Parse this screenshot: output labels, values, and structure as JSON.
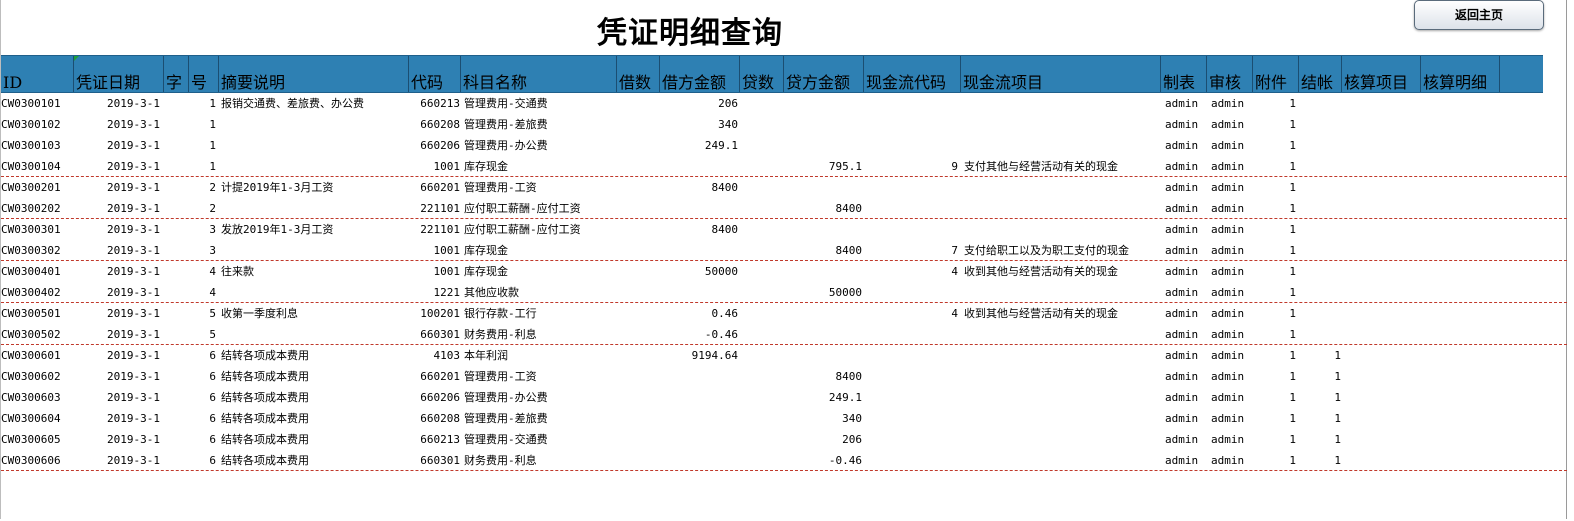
{
  "title": "凭证明细查询",
  "back_button": "返回主页",
  "headers": [
    "ID",
    "凭证日期",
    "字",
    "号",
    "摘要说明",
    "代码",
    "科目名称",
    "借数",
    "借方金额",
    "贷数",
    "贷方金额",
    "现金流代码",
    "现金流项目",
    "制表",
    "审核",
    "附件",
    "结帐",
    "核算项目",
    "核算明细"
  ],
  "rows": [
    {
      "id": "CW0300101",
      "date": "2019-3-1",
      "no": "1",
      "summary": "报销交通费、差旅费、办公费",
      "code": "660213",
      "subject": "管理费用-交通费",
      "debit": "206",
      "credit": "",
      "cf_code": "",
      "cf_item": "",
      "maker": "admin",
      "auditor": "admin",
      "attach": "1",
      "closed": ""
    },
    {
      "id": "CW0300102",
      "date": "2019-3-1",
      "no": "1",
      "summary": "",
      "code": "660208",
      "subject": "管理费用-差旅费",
      "debit": "340",
      "credit": "",
      "cf_code": "",
      "cf_item": "",
      "maker": "admin",
      "auditor": "admin",
      "attach": "1",
      "closed": ""
    },
    {
      "id": "CW0300103",
      "date": "2019-3-1",
      "no": "1",
      "summary": "",
      "code": "660206",
      "subject": "管理费用-办公费",
      "debit": "249.1",
      "credit": "",
      "cf_code": "",
      "cf_item": "",
      "maker": "admin",
      "auditor": "admin",
      "attach": "1",
      "closed": ""
    },
    {
      "id": "CW0300104",
      "date": "2019-3-1",
      "no": "1",
      "summary": "",
      "code": "1001",
      "subject": "库存现金",
      "debit": "",
      "credit": "795.1",
      "cf_code": "9",
      "cf_item": "支付其他与经营活动有关的现金",
      "maker": "admin",
      "auditor": "admin",
      "attach": "1",
      "closed": ""
    },
    {
      "id": "CW0300201",
      "date": "2019-3-1",
      "no": "2",
      "summary": "计提2019年1-3月工资",
      "code": "660201",
      "subject": "管理费用-工资",
      "debit": "8400",
      "credit": "",
      "cf_code": "",
      "cf_item": "",
      "maker": "admin",
      "auditor": "admin",
      "attach": "1",
      "closed": ""
    },
    {
      "id": "CW0300202",
      "date": "2019-3-1",
      "no": "2",
      "summary": "",
      "code": "221101",
      "subject": "应付职工薪酬-应付工资",
      "debit": "",
      "credit": "8400",
      "cf_code": "",
      "cf_item": "",
      "maker": "admin",
      "auditor": "admin",
      "attach": "1",
      "closed": ""
    },
    {
      "id": "CW0300301",
      "date": "2019-3-1",
      "no": "3",
      "summary": "发放2019年1-3月工资",
      "code": "221101",
      "subject": "应付职工薪酬-应付工资",
      "debit": "8400",
      "credit": "",
      "cf_code": "",
      "cf_item": "",
      "maker": "admin",
      "auditor": "admin",
      "attach": "1",
      "closed": ""
    },
    {
      "id": "CW0300302",
      "date": "2019-3-1",
      "no": "3",
      "summary": "",
      "code": "1001",
      "subject": "库存现金",
      "debit": "",
      "credit": "8400",
      "cf_code": "7",
      "cf_item": "支付给职工以及为职工支付的现金",
      "maker": "admin",
      "auditor": "admin",
      "attach": "1",
      "closed": ""
    },
    {
      "id": "CW0300401",
      "date": "2019-3-1",
      "no": "4",
      "summary": "往来款",
      "code": "1001",
      "subject": "库存现金",
      "debit": "50000",
      "credit": "",
      "cf_code": "4",
      "cf_item": "收到其他与经营活动有关的现金",
      "maker": "admin",
      "auditor": "admin",
      "attach": "1",
      "closed": ""
    },
    {
      "id": "CW0300402",
      "date": "2019-3-1",
      "no": "4",
      "summary": "",
      "code": "1221",
      "subject": "其他应收款",
      "debit": "",
      "credit": "50000",
      "cf_code": "",
      "cf_item": "",
      "maker": "admin",
      "auditor": "admin",
      "attach": "1",
      "closed": ""
    },
    {
      "id": "CW0300501",
      "date": "2019-3-1",
      "no": "5",
      "summary": "收第一季度利息",
      "code": "100201",
      "subject": "银行存款-工行",
      "debit": "0.46",
      "credit": "",
      "cf_code": "4",
      "cf_item": "收到其他与经营活动有关的现金",
      "maker": "admin",
      "auditor": "admin",
      "attach": "1",
      "closed": ""
    },
    {
      "id": "CW0300502",
      "date": "2019-3-1",
      "no": "5",
      "summary": "",
      "code": "660301",
      "subject": "财务费用-利息",
      "debit": "-0.46",
      "credit": "",
      "cf_code": "",
      "cf_item": "",
      "maker": "admin",
      "auditor": "admin",
      "attach": "1",
      "closed": ""
    },
    {
      "id": "CW0300601",
      "date": "2019-3-1",
      "no": "6",
      "summary": "结转各项成本费用",
      "code": "4103",
      "subject": "本年利润",
      "debit": "9194.64",
      "credit": "",
      "cf_code": "",
      "cf_item": "",
      "maker": "admin",
      "auditor": "admin",
      "attach": "1",
      "closed": "1"
    },
    {
      "id": "CW0300602",
      "date": "2019-3-1",
      "no": "6",
      "summary": "结转各项成本费用",
      "code": "660201",
      "subject": "管理费用-工资",
      "debit": "",
      "credit": "8400",
      "cf_code": "",
      "cf_item": "",
      "maker": "admin",
      "auditor": "admin",
      "attach": "1",
      "closed": "1"
    },
    {
      "id": "CW0300603",
      "date": "2019-3-1",
      "no": "6",
      "summary": "结转各项成本费用",
      "code": "660206",
      "subject": "管理费用-办公费",
      "debit": "",
      "credit": "249.1",
      "cf_code": "",
      "cf_item": "",
      "maker": "admin",
      "auditor": "admin",
      "attach": "1",
      "closed": "1"
    },
    {
      "id": "CW0300604",
      "date": "2019-3-1",
      "no": "6",
      "summary": "结转各项成本费用",
      "code": "660208",
      "subject": "管理费用-差旅费",
      "debit": "",
      "credit": "340",
      "cf_code": "",
      "cf_item": "",
      "maker": "admin",
      "auditor": "admin",
      "attach": "1",
      "closed": "1"
    },
    {
      "id": "CW0300605",
      "date": "2019-3-1",
      "no": "6",
      "summary": "结转各项成本费用",
      "code": "660213",
      "subject": "管理费用-交通费",
      "debit": "",
      "credit": "206",
      "cf_code": "",
      "cf_item": "",
      "maker": "admin",
      "auditor": "admin",
      "attach": "1",
      "closed": "1"
    },
    {
      "id": "CW0300606",
      "date": "2019-3-1",
      "no": "6",
      "summary": "结转各项成本费用",
      "code": "660301",
      "subject": "财务费用-利息",
      "debit": "",
      "credit": "-0.46",
      "cf_code": "",
      "cf_item": "",
      "maker": "admin",
      "auditor": "admin",
      "attach": "1",
      "closed": "1"
    }
  ]
}
